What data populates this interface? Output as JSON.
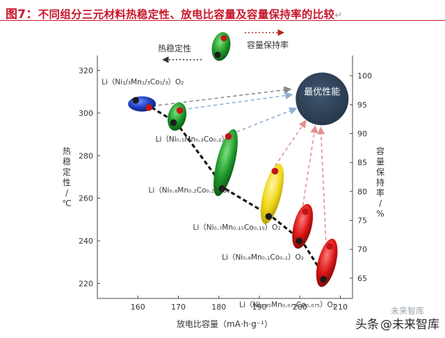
{
  "title": {
    "figure_number": "图7：",
    "text": "不同组分三元材料热稳定性、放电比容量及容量保持率的比较",
    "return_mark": "↵"
  },
  "watermark": {
    "site_text": "头条",
    "account": "@未来智库",
    "brand_small": "未来智库"
  },
  "colors": {
    "title": "#c8162b",
    "best_circle": "#2c3e50",
    "blue": "#1f3fbf",
    "green": "#1f9a2c",
    "yellow": "#f0d81a",
    "red": "#d81616",
    "dot_red": "#c41414",
    "dot_dark": "#1a1a1a"
  },
  "chart_data": {
    "type": "scatter",
    "xlabel": "放电比容量（mA·h·g⁻¹）",
    "ylabel_left": [
      "热",
      "稳",
      "定",
      "性",
      "/",
      "℃"
    ],
    "ylabel_right": [
      "容",
      "量",
      "保",
      "持",
      "率",
      "/",
      "%"
    ],
    "xlim": [
      150,
      213
    ],
    "ylim_left": [
      213,
      327
    ],
    "ylim_right": [
      61.5,
      103.5
    ],
    "xticks": [
      160,
      170,
      180,
      190,
      200,
      210
    ],
    "yticks_left": [
      220,
      240,
      260,
      280,
      300,
      320
    ],
    "yticks_right": [
      65,
      70,
      75,
      80,
      85,
      90,
      95,
      100
    ],
    "legend_thermal": "热稳定性",
    "legend_retention": "容量保持率",
    "best_label": "最优性能",
    "best_point": {
      "x": 205.5,
      "y_right": 96.0
    },
    "materials": [
      {
        "name": "Li（Ni₁/₃Mn₁/₃Co₁/₃）O₂",
        "color": "blue",
        "capacity": 160.5,
        "thermal": 306.0,
        "retention": 94.5
      },
      {
        "name": "Li（Ni₀.₅Mn₀.₃Co₀.₂）O₂",
        "color": "green",
        "capacity": 169.5,
        "thermal": 295.5,
        "retention": 94.0
      },
      {
        "name": "Li（Ni₀.₆Mn₀.₂Co₀.₂）O₂",
        "color": "green",
        "capacity": 181.5,
        "thermal": 264.5,
        "retention": 89.5
      },
      {
        "name": "Li（Ni₀.₇Mn₀.₁₅Co₀.₁₅）O₂",
        "color": "yellow",
        "capacity": 193.0,
        "thermal": 251.5,
        "retention": 83.5
      },
      {
        "name": "Li（Ni₀.₈Mn₀.₁Co₀.₁）O₂",
        "color": "red",
        "capacity": 200.5,
        "thermal": 240.0,
        "retention": 76.5
      },
      {
        "name": "Li（Ni₀.₈₅Mn₀.₀₇₅Co₀.₀₇₅）O₂",
        "color": "red",
        "capacity": 206.5,
        "thermal": 222.0,
        "retention": 70.5
      }
    ]
  }
}
